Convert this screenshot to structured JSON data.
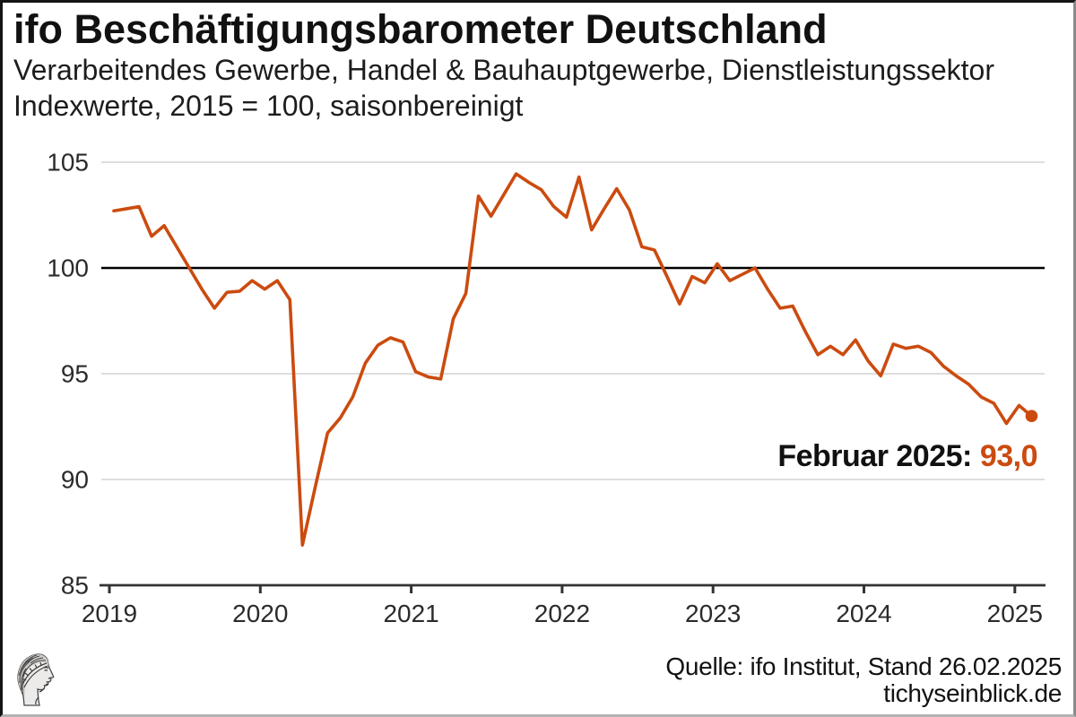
{
  "header": {
    "title": "ifo Beschäftigungsbarometer Deutschland",
    "subtitle1": "Verarbeitendes Gewerbe, Handel & Bauhauptgewerbe, Dienstleistungssektor",
    "subtitle2": "Indexwerte, 2015 = 100, saisonbereinigt"
  },
  "annotation": {
    "label": "Februar 2025:",
    "value": "93,0"
  },
  "footer": {
    "source": "Quelle: ifo Institut, Stand 26.02.2025",
    "site": "tichyseinblick.de"
  },
  "colors": {
    "line": "#cb4b0f",
    "grid": "#d9d9d9",
    "reference": "#000000",
    "axis": "#333333",
    "tick_text": "#2b2b2b"
  },
  "chart_data": {
    "type": "line",
    "title": "ifo Beschäftigungsbarometer Deutschland",
    "x_start": "2019-01",
    "x_end": "2025-02",
    "x_tick_labels": [
      "2019",
      "2020",
      "2021",
      "2022",
      "2023",
      "2024",
      "2025"
    ],
    "y_ticks": [
      85,
      90,
      95,
      100,
      105
    ],
    "ylim": [
      85,
      105
    ],
    "reference_line": 100,
    "grid": true,
    "legend": false,
    "series": [
      {
        "name": "ifo Beschäftigungsbarometer",
        "values": [
          102.7,
          102.8,
          102.9,
          101.5,
          102.0,
          101.0,
          100.0,
          99.0,
          98.1,
          98.85,
          98.9,
          99.4,
          99.0,
          99.4,
          98.5,
          86.9,
          89.6,
          92.2,
          92.9,
          93.9,
          95.5,
          96.35,
          96.7,
          96.5,
          95.1,
          94.85,
          94.75,
          97.6,
          98.8,
          103.4,
          102.45,
          103.45,
          104.45,
          104.05,
          103.7,
          102.9,
          102.4,
          104.3,
          101.8,
          102.8,
          103.75,
          102.75,
          101.0,
          100.85,
          99.6,
          98.3,
          99.6,
          99.3,
          100.2,
          99.4,
          99.7,
          100.0,
          99.0,
          98.1,
          98.2,
          97.0,
          95.9,
          96.3,
          95.9,
          96.6,
          95.6,
          94.9,
          96.4,
          96.2,
          96.3,
          96.0,
          95.35,
          94.9,
          94.5,
          93.9,
          93.6,
          92.65,
          93.5,
          93.0
        ]
      }
    ],
    "highlight": {
      "x": "2025-02",
      "value": 93.0
    }
  }
}
